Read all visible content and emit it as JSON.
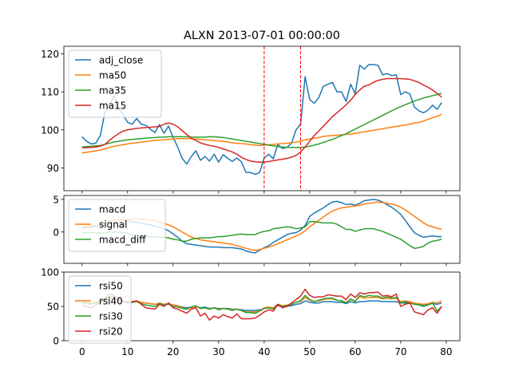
{
  "title": "ALXN 2013-07-01 00:00:00",
  "colors": {
    "blue": "#1f77b4",
    "orange": "#ff7f0e",
    "green": "#2ca02c",
    "red": "#d62728"
  },
  "chart_data": [
    {
      "type": "line",
      "title": "ALXN 2013-07-01 00:00:00",
      "xlim": [
        -4,
        83
      ],
      "ylim": [
        84,
        122
      ],
      "yticks": [
        90,
        100,
        110,
        120
      ],
      "xticks": [
        0,
        10,
        20,
        30,
        40,
        50,
        60,
        70,
        80
      ],
      "legend": "upper-left",
      "vlines": [
        {
          "x": 40,
          "color": "#ff0000",
          "style": "dashed"
        },
        {
          "x": 48,
          "color": "#ff0000",
          "style": "dashed"
        }
      ],
      "series": [
        {
          "name": "adj_close",
          "color": "#1f77b4",
          "values": [
            98.2,
            97,
            96.3,
            96.5,
            98.5,
            104.5,
            106.5,
            109,
            106,
            104,
            102,
            101.5,
            103,
            101.5,
            101.2,
            100.2,
            99.3,
            101.4,
            99.1,
            101,
            98,
            95.5,
            92.5,
            91,
            93,
            94.5,
            92,
            93,
            91.8,
            93.6,
            91.5,
            93.5,
            92.5,
            91.7,
            92.6,
            91.6,
            88.8,
            88.8,
            88.3,
            88.8,
            92.6,
            93.6,
            92.4,
            96.2,
            95.1,
            95.4,
            96.5,
            100,
            101.5,
            114,
            108,
            107,
            108.5,
            111.5,
            112,
            112.5,
            110,
            110,
            107.5,
            112,
            109.5,
            117,
            116,
            117.2,
            117.2,
            117,
            114.5,
            114.8,
            114.3,
            114.5,
            109.3,
            110,
            109.5,
            106,
            105,
            104.5,
            105.2,
            106.5,
            105.4,
            107.2
          ]
        },
        {
          "name": "ma50",
          "color": "#ff7f0e",
          "values": [
            93.9,
            94.1,
            94.3,
            94.5,
            94.7,
            95,
            95.4,
            95.7,
            95.9,
            96.1,
            96.3,
            96.5,
            96.6,
            96.8,
            96.9,
            97.1,
            97.2,
            97.3,
            97.4,
            97.5,
            97.6,
            97.7,
            97.7,
            97.7,
            97.7,
            97.6,
            97.5,
            97.4,
            97.3,
            97.2,
            97.1,
            97,
            96.8,
            96.6,
            96.5,
            96.4,
            96.3,
            96.1,
            96,
            95.9,
            96,
            96.1,
            96.2,
            96.3,
            96.4,
            96.5,
            96.6,
            96.8,
            97,
            97.4,
            97.6,
            97.8,
            98,
            98.3,
            98.4,
            98.5,
            98.6,
            98.7,
            98.8,
            98.9,
            99.1,
            99.3,
            99.5,
            99.7,
            99.9,
            100.1,
            100.3,
            100.5,
            100.7,
            100.9,
            101.1,
            101.3,
            101.5,
            101.8,
            102,
            102.3,
            102.8,
            103.2,
            103.6,
            104.1
          ]
        },
        {
          "name": "ma35",
          "color": "#2ca02c",
          "values": [
            95.5,
            95.6,
            95.7,
            95.8,
            95.9,
            96.2,
            96.5,
            96.8,
            97,
            97.2,
            97.4,
            97.5,
            97.6,
            97.7,
            97.8,
            97.9,
            98,
            98.1,
            98.1,
            98.2,
            98.2,
            98.2,
            98.2,
            98.2,
            98.1,
            98.1,
            98.1,
            98.1,
            98.2,
            98.2,
            98.1,
            98,
            97.8,
            97.6,
            97.4,
            97.2,
            97,
            96.8,
            96.6,
            96.4,
            96.2,
            96,
            95.8,
            95.6,
            95.5,
            95.4,
            95.4,
            95.4,
            95.4,
            95.5,
            95.7,
            96,
            96.3,
            96.7,
            97.1,
            97.5,
            98,
            98.5,
            99,
            99.6,
            100.2,
            100.8,
            101.4,
            102,
            102.6,
            103.2,
            103.8,
            104.4,
            105,
            105.6,
            106.1,
            106.6,
            107.1,
            107.6,
            108,
            108.4,
            108.7,
            109,
            109.3,
            109.6
          ]
        },
        {
          "name": "ma15",
          "color": "#d62728",
          "values": [
            95.3,
            95.3,
            95.4,
            95.5,
            95.7,
            96.2,
            97.2,
            98.2,
            99,
            99.7,
            100,
            100.2,
            100.4,
            100.5,
            100.6,
            100.7,
            100.8,
            100.9,
            101.5,
            101.8,
            101.5,
            100.8,
            99.8,
            98.8,
            97.8,
            97.2,
            96.6,
            96.2,
            95.9,
            95.7,
            95.4,
            95,
            94.6,
            94.2,
            93.6,
            92.8,
            92.2,
            91.8,
            91.6,
            91.5,
            91.5,
            91.7,
            91.9,
            92.1,
            92.3,
            92.5,
            92.8,
            93.3,
            94.2,
            95.5,
            97,
            98.5,
            99.7,
            101,
            102.2,
            103.5,
            104.5,
            105.5,
            106.6,
            107.8,
            109.3,
            110.5,
            111.5,
            111.8,
            112.5,
            113,
            113.3,
            113.5,
            113.5,
            113.5,
            113.5,
            113.4,
            113.3,
            112.9,
            112.5,
            111.8,
            111.2,
            110.5,
            109.6,
            108.6
          ]
        }
      ]
    },
    {
      "type": "line",
      "xlim": [
        -4,
        83
      ],
      "ylim": [
        -4.8,
        5.6
      ],
      "yticks": [
        0,
        5
      ],
      "xticks": [
        0,
        10,
        20,
        30,
        40,
        50,
        60,
        70,
        80
      ],
      "legend": "upper-left",
      "series": [
        {
          "name": "macd",
          "color": "#1f77b4",
          "values": [
            0.6,
            0.7,
            0.8,
            0.9,
            1,
            1.3,
            1.6,
            1.8,
            1.9,
            1.8,
            1.7,
            1.6,
            1.5,
            1.3,
            1.2,
            1.1,
            0.9,
            0.7,
            0.5,
            0.2,
            -0.3,
            -0.8,
            -1.4,
            -1.8,
            -1.9,
            -2,
            -2.1,
            -2.2,
            -2.3,
            -2.3,
            -2.3,
            -2.4,
            -2.4,
            -2.4,
            -2.5,
            -2.6,
            -2.9,
            -3.1,
            -3.2,
            -2.8,
            -2.4,
            -2.1,
            -1.6,
            -1.2,
            -0.8,
            -0.4,
            -0.2,
            -0.1,
            0.3,
            1,
            2.4,
            2.9,
            3.3,
            3.7,
            4.2,
            4.6,
            4.7,
            4.5,
            4.2,
            4.3,
            4.1,
            4.4,
            4.8,
            4.9,
            5,
            4.9,
            4.6,
            4.2,
            3.8,
            3.3,
            2.7,
            1.8,
            0.8,
            -0.1,
            -0.5,
            -0.8,
            -0.7,
            -0.6,
            -0.7,
            -0.7
          ]
        },
        {
          "name": "signal",
          "color": "#ff7f0e",
          "values": [
            0.7,
            0.8,
            0.9,
            1,
            1.2,
            1.4,
            1.6,
            1.8,
            1.9,
            1.9,
            1.9,
            2,
            2,
            2,
            1.9,
            1.8,
            1.7,
            1.5,
            1.3,
            1.1,
            0.8,
            0.4,
            0,
            -0.4,
            -0.8,
            -1,
            -1.2,
            -1.3,
            -1.4,
            -1.5,
            -1.6,
            -1.7,
            -1.8,
            -1.9,
            -2.1,
            -2.3,
            -2.5,
            -2.7,
            -2.8,
            -2.7,
            -2.5,
            -2.3,
            -2.1,
            -1.8,
            -1.5,
            -1.2,
            -0.9,
            -0.6,
            -0.3,
            0.2,
            0.8,
            1.3,
            1.8,
            2.3,
            2.8,
            3.2,
            3.5,
            3.7,
            3.8,
            3.9,
            4,
            4.1,
            4.3,
            4.4,
            4.5,
            4.6,
            4.5,
            4.4,
            4.3,
            4.1,
            3.8,
            3.4,
            2.9,
            2.4,
            1.9,
            1.4,
            1,
            0.8,
            0.6,
            0.4
          ]
        },
        {
          "name": "macd_diff",
          "color": "#2ca02c",
          "values": [
            -0.1,
            -0.1,
            -0.1,
            -0.1,
            -0.2,
            -0.1,
            0,
            0,
            0,
            -0.1,
            -0.2,
            -0.4,
            -0.5,
            -0.7,
            -0.7,
            -0.7,
            -0.8,
            -0.8,
            -0.8,
            -0.9,
            -1.1,
            -1.2,
            -1.4,
            -1.4,
            -1.1,
            -1,
            -0.9,
            -0.9,
            -0.9,
            -0.8,
            -0.7,
            -0.7,
            -0.6,
            -0.5,
            -0.4,
            -0.3,
            -0.4,
            -0.4,
            -0.4,
            -0.1,
            0.1,
            0.2,
            0.5,
            0.6,
            0.7,
            0.8,
            0.7,
            0.5,
            0.6,
            0.8,
            1.6,
            1.6,
            1.5,
            1.4,
            1.4,
            1.4,
            1.2,
            0.8,
            0.4,
            0.4,
            0.1,
            0.3,
            0.5,
            0.5,
            0.5,
            0.3,
            0.1,
            -0.2,
            -0.5,
            -0.8,
            -1.1,
            -1.6,
            -2.1,
            -2.5,
            -2.4,
            -2.2,
            -1.7,
            -1.4,
            -1.3,
            -1.1
          ]
        }
      ]
    },
    {
      "type": "line",
      "xlim": [
        -4,
        83
      ],
      "ylim": [
        0,
        100
      ],
      "yticks": [
        0,
        50,
        100
      ],
      "xticks": [
        0,
        10,
        20,
        30,
        40,
        50,
        60,
        70,
        80
      ],
      "xticklabels": [
        "0",
        "10",
        "20",
        "30",
        "40",
        "50",
        "60",
        "70",
        "80"
      ],
      "legend": "upper-left",
      "series": [
        {
          "name": "rsi50",
          "color": "#1f77b4",
          "values": [
            55,
            54,
            54,
            55,
            56,
            58,
            60,
            61,
            59,
            57,
            56,
            56,
            57,
            56,
            55,
            54,
            53,
            54,
            53,
            53,
            52,
            51,
            49,
            48,
            49,
            50,
            48,
            49,
            47,
            48,
            47,
            47,
            47,
            46,
            46,
            45,
            44,
            44,
            44,
            45,
            47,
            48,
            48,
            51,
            50,
            50,
            51,
            53,
            54,
            58,
            56,
            55,
            55,
            57,
            57,
            57,
            56,
            56,
            54,
            57,
            55,
            57,
            57,
            58,
            58,
            58,
            57,
            57,
            57,
            57,
            55,
            55,
            55,
            53,
            53,
            52,
            53,
            54,
            53,
            55
          ]
        },
        {
          "name": "rsi40",
          "color": "#ff7f0e",
          "values": [
            57,
            56,
            55,
            56,
            58,
            60,
            63,
            64,
            61,
            58,
            57,
            56,
            58,
            56,
            55,
            54,
            53,
            55,
            53,
            54,
            52,
            51,
            48,
            46,
            48,
            50,
            47,
            48,
            46,
            48,
            46,
            47,
            46,
            45,
            46,
            44,
            42,
            42,
            42,
            44,
            48,
            49,
            48,
            53,
            51,
            52,
            53,
            56,
            57,
            63,
            59,
            57,
            58,
            60,
            61,
            61,
            59,
            58,
            56,
            60,
            58,
            64,
            62,
            63,
            63,
            63,
            61,
            62,
            61,
            62,
            57,
            58,
            57,
            55,
            54,
            53,
            54,
            56,
            55,
            58
          ]
        },
        {
          "name": "rsi30",
          "color": "#2ca02c",
          "values": [
            56,
            54,
            53,
            55,
            57,
            61,
            64,
            65,
            61,
            58,
            56,
            56,
            57,
            54,
            52,
            51,
            50,
            54,
            52,
            54,
            50,
            49,
            47,
            46,
            49,
            51,
            47,
            48,
            46,
            48,
            45,
            47,
            46,
            44,
            46,
            44,
            41,
            41,
            40,
            43,
            47,
            48,
            46,
            53,
            50,
            51,
            53,
            56,
            58,
            66,
            60,
            57,
            59,
            61,
            62,
            62,
            59,
            58,
            55,
            61,
            57,
            66,
            64,
            66,
            65,
            65,
            62,
            64,
            62,
            63,
            55,
            57,
            55,
            53,
            52,
            50,
            52,
            55,
            43,
            50
          ]
        },
        {
          "name": "rsi20",
          "color": "#d62728",
          "values": [
            52,
            49,
            48,
            52,
            56,
            62,
            68,
            66,
            60,
            57,
            55,
            57,
            58,
            53,
            48,
            47,
            46,
            53,
            50,
            55,
            48,
            46,
            43,
            40,
            46,
            48,
            36,
            40,
            30,
            36,
            33,
            38,
            35,
            33,
            39,
            32,
            32,
            32,
            33,
            37,
            42,
            45,
            43,
            53,
            48,
            50,
            55,
            60,
            65,
            75,
            66,
            63,
            64,
            64,
            67,
            66,
            65,
            65,
            60,
            68,
            63,
            70,
            68,
            70,
            70,
            71,
            65,
            66,
            64,
            68,
            50,
            53,
            55,
            42,
            40,
            38,
            45,
            48,
            40,
            50
          ]
        }
      ]
    }
  ]
}
